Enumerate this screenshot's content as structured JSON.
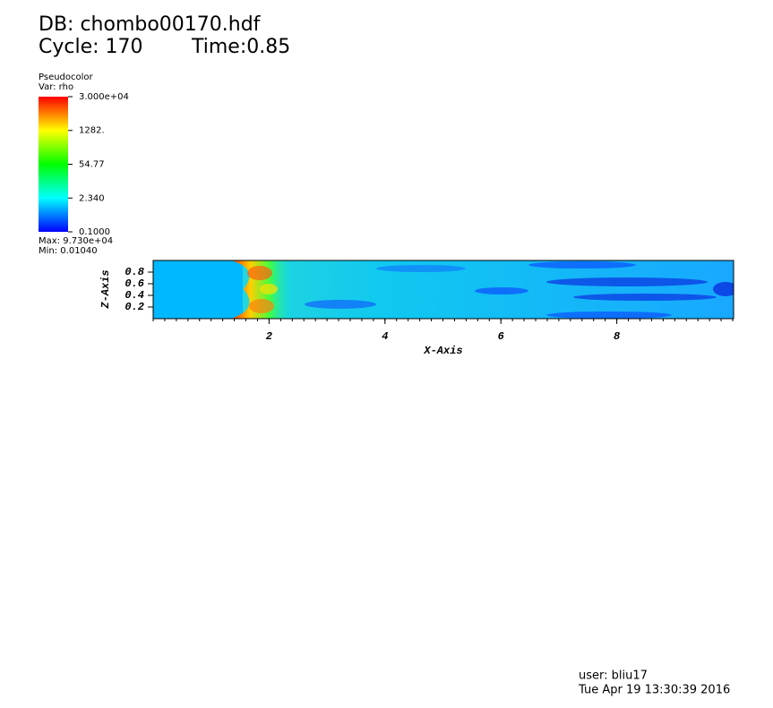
{
  "chart_data": {
    "type": "pseudocolor",
    "database": "DB: chombo00170.hdf",
    "cycle": "Cycle: 170",
    "time": "Time:0.85",
    "legend_title": "Pseudocolor",
    "variable": "Var: rho",
    "colorbar_scale": "log",
    "clim": [
      0.1,
      30000
    ],
    "colorbar_ticks": [
      {
        "value": 30000,
        "label": "3.000e+04"
      },
      {
        "value": 1282,
        "label": "1282."
      },
      54.77,
      {
        "value": 2.34,
        "label": "2.340"
      },
      {
        "value": 0.1,
        "label": "0.1000"
      }
    ],
    "colors": [
      "#0000ff",
      "#00ffff",
      "#00ff00",
      "#ffff00",
      "#ff0000"
    ],
    "max_label": "Max:  9.730e+04",
    "min_label": "Min:  0.01040",
    "xlabel": "X-Axis",
    "ylabel": "Z-Axis",
    "xlim": [
      0,
      10
    ],
    "ylim": [
      0,
      1
    ],
    "xticks": [
      2,
      4,
      6,
      8
    ],
    "yticks": [
      0.2,
      0.4,
      0.6,
      0.8
    ],
    "user": "user: bliu17",
    "date": "Tue Apr 19 13:30:39 2016"
  }
}
